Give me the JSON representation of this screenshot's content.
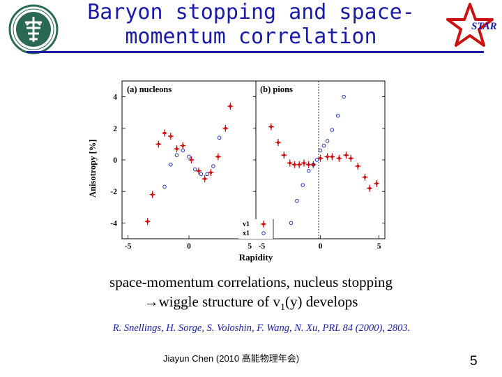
{
  "title": "Baryon stopping and space-momentum correlation",
  "logos": {
    "left": "university-seal",
    "right": "star-logo",
    "right_text": "STAR"
  },
  "chart_data": [
    {
      "type": "scatter",
      "panel_label": "(a) nucleons",
      "ylabel": "Anisotropy [%]",
      "xlim": [
        -5.5,
        5.5
      ],
      "ylim": [
        -5,
        5
      ],
      "x_ticks": [
        "-5",
        "0",
        "5"
      ],
      "y_ticks": [
        "4",
        "2",
        "0",
        "-2",
        "-4"
      ],
      "series": [
        {
          "name": "v1",
          "marker": "star",
          "color": "#cc1111",
          "x": [
            -3.4,
            -3.0,
            -2.5,
            -2.0,
            -1.5,
            -1.0,
            -0.5,
            0.2,
            0.8,
            1.3,
            1.8,
            2.4,
            3.0,
            3.4
          ],
          "y": [
            -3.9,
            -2.2,
            1.0,
            1.7,
            1.5,
            0.7,
            0.9,
            0.0,
            -0.7,
            -1.2,
            -0.8,
            0.2,
            2.0,
            3.4
          ]
        },
        {
          "name": "x1",
          "marker": "circle",
          "color": "#2233aa",
          "x": [
            -2.0,
            -1.5,
            -1.0,
            -0.5,
            0.0,
            0.5,
            1.0,
            1.5,
            2.0,
            2.5
          ],
          "y": [
            -1.7,
            -0.3,
            0.3,
            0.6,
            0.2,
            -0.6,
            -0.9,
            -0.9,
            -0.4,
            1.4
          ]
        }
      ]
    },
    {
      "type": "scatter",
      "panel_label": "(b) pions",
      "xlabel": "Rapidity",
      "xlim": [
        -5.5,
        5.5
      ],
      "ylim": [
        -5,
        5
      ],
      "x_ticks": [
        "-5",
        "0",
        "5"
      ],
      "legend": [
        {
          "label": "v1",
          "marker": "star",
          "color": "#cc1111"
        },
        {
          "label": "x1",
          "marker": "circle",
          "color": "#2233aa"
        }
      ],
      "series": [
        {
          "name": "v1",
          "marker": "star",
          "color": "#cc1111",
          "x": [
            -4.2,
            -3.6,
            -3.1,
            -2.6,
            -2.2,
            -1.8,
            -1.4,
            -1.0,
            -0.6,
            0.0,
            0.6,
            1.0,
            1.6,
            2.2,
            2.6,
            3.2,
            3.8,
            4.2,
            4.8
          ],
          "y": [
            2.1,
            1.1,
            0.3,
            -0.2,
            -0.3,
            -0.3,
            -0.2,
            -0.3,
            -0.3,
            0.1,
            0.2,
            0.2,
            0.1,
            0.3,
            0.1,
            -0.4,
            -1.1,
            -1.8,
            -1.5
          ]
        },
        {
          "name": "x1",
          "marker": "circle",
          "color": "#2233aa",
          "x": [
            -2.5,
            -2.0,
            -1.5,
            -1.0,
            -0.6,
            -0.3,
            0.0,
            0.3,
            0.6,
            1.0,
            1.5,
            2.0
          ],
          "y": [
            -4.0,
            -2.6,
            -1.6,
            -0.7,
            -0.3,
            0.0,
            0.6,
            0.9,
            1.2,
            1.9,
            2.8,
            4.0
          ]
        }
      ]
    }
  ],
  "caption": {
    "line1": "space-momentum correlations, nucleus stopping",
    "arrow": "→",
    "line2_pre": "wiggle structure of v",
    "line2_sub": "1",
    "line2_post": "(y) develops"
  },
  "reference": "R. Snellings, H. Sorge, S. Voloshin, F. Wang, N. Xu, PRL 84 (2000), 2803.",
  "author": "Jiayun Chen (2010 高能物理年会)",
  "page_number": "5"
}
